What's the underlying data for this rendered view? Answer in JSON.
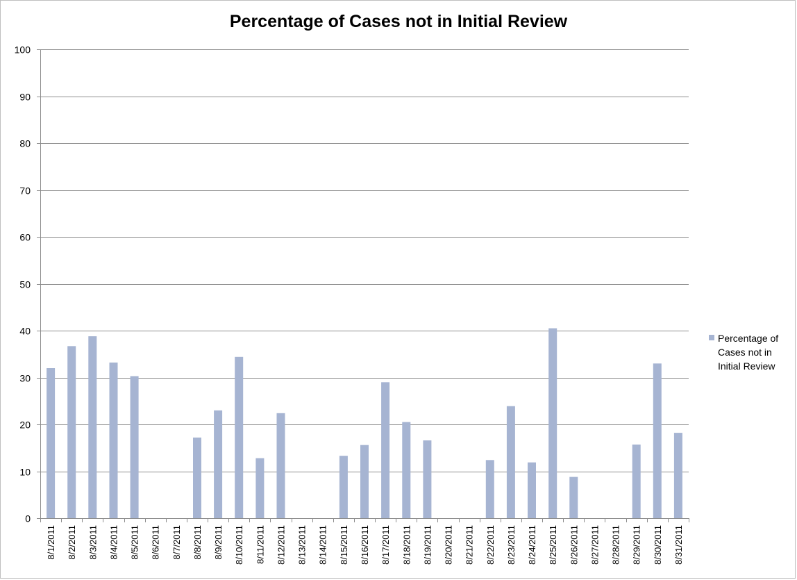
{
  "chart_data": {
    "type": "bar",
    "title": "Percentage of Cases not in Initial Review",
    "xlabel": "",
    "ylabel": "",
    "ylim": [
      0,
      100
    ],
    "yticks": [
      0,
      10,
      20,
      30,
      40,
      50,
      60,
      70,
      80,
      90,
      100
    ],
    "grid": true,
    "legend_position": "right",
    "bar_color": "#a6b4d2",
    "categories": [
      "8/1/2011",
      "8/2/2011",
      "8/3/2011",
      "8/4/2011",
      "8/5/2011",
      "8/6/2011",
      "8/7/2011",
      "8/8/2011",
      "8/9/2011",
      "8/10/2011",
      "8/11/2011",
      "8/12/2011",
      "8/13/2011",
      "8/14/2011",
      "8/15/2011",
      "8/16/2011",
      "8/17/2011",
      "8/18/2011",
      "8/19/2011",
      "8/20/2011",
      "8/21/2011",
      "8/22/2011",
      "8/23/2011",
      "8/24/2011",
      "8/25/2011",
      "8/26/2011",
      "8/27/2011",
      "8/28/2011",
      "8/29/2011",
      "8/30/2011",
      "8/31/2011"
    ],
    "series": [
      {
        "name": "Percentage of Cases not in Initial Review",
        "values": [
          32,
          36.7,
          38.8,
          33.2,
          30.3,
          0,
          0,
          17.2,
          23,
          34.4,
          12.8,
          22.4,
          0,
          0,
          13.3,
          15.6,
          29,
          20.5,
          16.6,
          0,
          0,
          12.4,
          23.9,
          11.9,
          40.5,
          8.8,
          0,
          0,
          15.7,
          33,
          18.2
        ]
      }
    ]
  }
}
